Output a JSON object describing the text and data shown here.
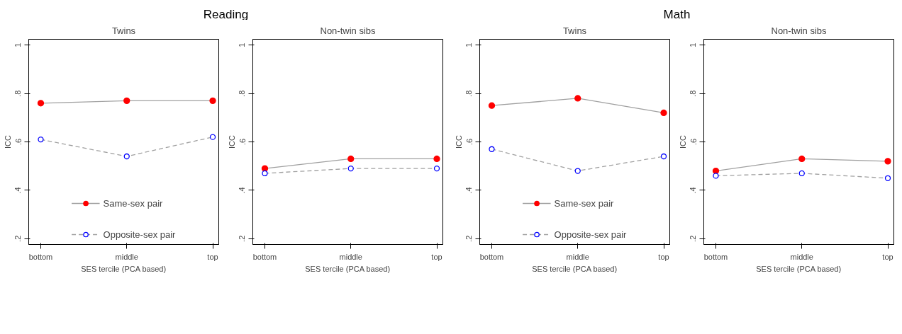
{
  "chart_data": [
    {
      "type": "line",
      "title": "Twins",
      "annotations": [
        "Reading"
      ],
      "xlabel": "SES tercile (PCA based)",
      "ylabel": "ICC",
      "categories": [
        "bottom",
        "middle",
        "top"
      ],
      "ylim": [
        0.176,
        1.024
      ],
      "yticks": [
        {
          "value": 0.2,
          "label": ".2"
        },
        {
          "value": 0.4,
          "label": ".4"
        },
        {
          "value": 0.6,
          "label": ".6"
        },
        {
          "value": 0.8,
          "label": ".8"
        },
        1
      ],
      "grid": false,
      "legend": "bottom",
      "series": [
        {
          "name": "Same-sex pair",
          "color": "#ff0000",
          "marker": "circle",
          "line_style": "solid",
          "values": [
            0.76,
            0.77,
            0.77
          ]
        },
        {
          "name": "Opposite-sex pair",
          "color": "#0000ff",
          "marker": "circle",
          "line_style": "dashed",
          "values": [
            0.61,
            0.54,
            0.62
          ]
        }
      ]
    },
    {
      "type": "line",
      "title": "Non-twin sibs",
      "xlabel": "SES tercile (PCA based)",
      "ylabel": "ICC",
      "categories": [
        "bottom",
        "middle",
        "top"
      ],
      "ylim": [
        0.176,
        1.024
      ],
      "yticks": [
        {
          "value": 0.2,
          "label": ".2"
        },
        {
          "value": 0.4,
          "label": ".4"
        },
        {
          "value": 0.6,
          "label": ".6"
        },
        {
          "value": 0.8,
          "label": ".8"
        },
        1
      ],
      "grid": false,
      "series": [
        {
          "color": "#ff0000",
          "marker": "circle",
          "line_style": "solid",
          "values": [
            0.49,
            0.53,
            0.53
          ]
        },
        {
          "color": "#0000ff",
          "marker": "circle",
          "line_style": "dashed",
          "values": [
            0.47,
            0.49,
            0.49
          ]
        }
      ]
    },
    {
      "type": "line",
      "title": "Twins",
      "annotations": [
        "Math"
      ],
      "xlabel": "SES tercile (PCA based)",
      "ylabel": "ICC",
      "categories": [
        "bottom",
        "middle",
        "top"
      ],
      "ylim": [
        0.176,
        1.024
      ],
      "yticks": [
        {
          "value": 0.2,
          "label": ".2"
        },
        {
          "value": 0.4,
          "label": ".4"
        },
        {
          "value": 0.6,
          "label": ".6"
        },
        {
          "value": 0.8,
          "label": ".8"
        },
        1
      ],
      "grid": false,
      "legend": "bottom",
      "series": [
        {
          "name": "Same-sex pair",
          "color": "#ff0000",
          "marker": "circle",
          "line_style": "solid",
          "values": [
            0.75,
            0.78,
            0.72
          ]
        },
        {
          "name": "Opposite-sex pair",
          "color": "#0000ff",
          "marker": "circle",
          "line_style": "dashed",
          "values": [
            0.57,
            0.48,
            0.54
          ]
        }
      ]
    },
    {
      "type": "line",
      "title": "Non-twin sibs",
      "xlabel": "SES tercile (PCA based)",
      "ylabel": "ICC",
      "categories": [
        "bottom",
        "middle",
        "top"
      ],
      "ylim": [
        0.176,
        1.024
      ],
      "yticks": [
        {
          "value": 0.2,
          "label": ".2"
        },
        {
          "value": 0.4,
          "label": ".4"
        },
        {
          "value": 0.6,
          "label": ".6"
        },
        {
          "value": 0.8,
          "label": ".8"
        },
        1
      ],
      "grid": false,
      "series": [
        {
          "color": "#ff0000",
          "marker": "circle",
          "line_style": "solid",
          "values": [
            0.48,
            0.53,
            0.52
          ]
        },
        {
          "color": "#0000ff",
          "marker": "circle",
          "line_style": "dashed",
          "values": [
            0.46,
            0.47,
            0.45
          ]
        }
      ]
    }
  ]
}
